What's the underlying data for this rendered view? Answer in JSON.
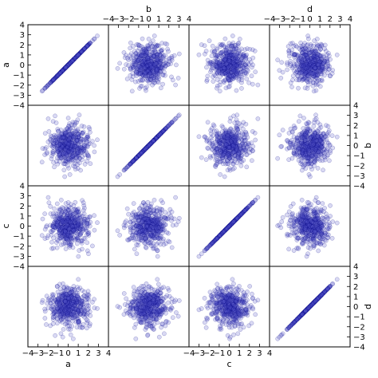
{
  "chart_data": {
    "type": "scatter",
    "variables": [
      "a",
      "b",
      "c",
      "d"
    ],
    "x_ticks": [
      "−4",
      "−3",
      "−2",
      "−1",
      "0",
      "1",
      "2",
      "3",
      "4"
    ],
    "y_ticks": [
      "−4",
      "−3",
      "−2",
      "−1",
      "0",
      "1",
      "2",
      "3",
      "4"
    ],
    "xlim": [
      -4,
      4
    ],
    "ylim": [
      -4,
      4
    ],
    "points_per_panel": 500,
    "distribution": "standard normal",
    "grid": false,
    "colors": {
      "marker_fill": "#5050c8",
      "marker_edge": "#000080",
      "frame": "#000000"
    }
  }
}
